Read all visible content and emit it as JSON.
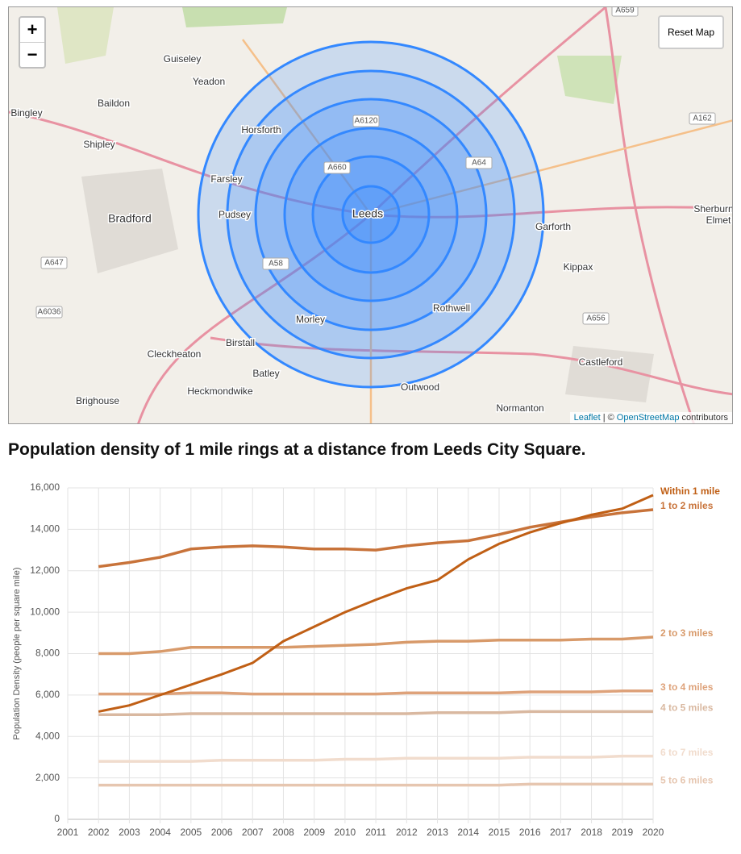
{
  "map": {
    "zoom_in": "+",
    "zoom_out": "−",
    "reset": "Reset Map",
    "attribution": {
      "leaflet": "Leaflet",
      "sep": "| ©",
      "osm": "OpenStreetMap",
      "rest": "contributors"
    },
    "places": [
      "Guiseley",
      "Yeadon",
      "Baildon",
      "Bingley",
      "Shipley",
      "Horsforth",
      "Farsley",
      "Pudsey",
      "Bradford",
      "Leeds",
      "Garforth",
      "Kippax",
      "Rothwell",
      "Morley",
      "Birstall",
      "Batley",
      "Cleckheaton",
      "Heckmondwike",
      "Brighouse",
      "Outwood",
      "Normanton",
      "Castleford",
      "Sherburn",
      "Elmet"
    ],
    "roads": [
      "A6120",
      "A660",
      "A64",
      "A58",
      "A647",
      "A6036",
      "A656",
      "A162",
      "A659"
    ]
  },
  "heading": "Population density of 1 mile rings at a distance from Leeds City Square.",
  "chart_data": {
    "type": "line",
    "y_label": "Population Density (people per square mile)",
    "x": [
      2002,
      2003,
      2004,
      2005,
      2006,
      2007,
      2008,
      2009,
      2010,
      2011,
      2012,
      2013,
      2014,
      2015,
      2016,
      2017,
      2018,
      2019,
      2020
    ],
    "xlim": [
      2001,
      2020
    ],
    "xticks": [
      2001,
      2002,
      2003,
      2004,
      2005,
      2006,
      2007,
      2008,
      2009,
      2010,
      2011,
      2012,
      2013,
      2014,
      2015,
      2016,
      2017,
      2018,
      2019,
      2020
    ],
    "ylim": [
      0,
      16000
    ],
    "yticks": [
      0,
      {
        "value": 2000,
        "label": "2,000"
      },
      {
        "value": 4000,
        "label": "4,000"
      },
      {
        "value": 6000,
        "label": "6,000"
      },
      {
        "value": 8000,
        "label": "8,000"
      },
      {
        "value": 10000,
        "label": "10,000"
      },
      {
        "value": 12000,
        "label": "12,000"
      },
      {
        "value": 14000,
        "label": "14,000"
      },
      {
        "value": 16000,
        "label": "16,000"
      }
    ],
    "grid": true,
    "series": [
      {
        "name": "Within 1 mile",
        "color": "#c05f15",
        "values": [
          5200,
          5500,
          6000,
          6500,
          7000,
          7550,
          8600,
          9300,
          10000,
          10600,
          11150,
          11550,
          12550,
          13300,
          13850,
          14300,
          14700,
          15000,
          15650
        ]
      },
      {
        "name": "1 to 2 miles",
        "color": "#c8733a",
        "values": [
          12200,
          12400,
          12650,
          13050,
          13150,
          13200,
          13150,
          13050,
          13050,
          13000,
          13200,
          13350,
          13450,
          13750,
          14100,
          14350,
          14600,
          14800,
          14950
        ]
      },
      {
        "name": "2 to 3 miles",
        "color": "#d89a6a",
        "values": [
          8000,
          8000,
          8100,
          8300,
          8300,
          8300,
          8300,
          8350,
          8400,
          8450,
          8550,
          8600,
          8600,
          8650,
          8650,
          8650,
          8700,
          8700,
          8800
        ]
      },
      {
        "name": "3 to 4 miles",
        "color": "#dea27a",
        "values": [
          6050,
          6050,
          6050,
          6100,
          6100,
          6050,
          6050,
          6050,
          6050,
          6050,
          6100,
          6100,
          6100,
          6100,
          6150,
          6150,
          6150,
          6200,
          6200
        ]
      },
      {
        "name": "4 to 5 miles",
        "color": "#d9b8a0",
        "values": [
          5050,
          5050,
          5050,
          5100,
          5100,
          5100,
          5100,
          5100,
          5100,
          5100,
          5100,
          5150,
          5150,
          5150,
          5200,
          5200,
          5200,
          5200,
          5200
        ]
      },
      {
        "name": "6 to 7 miles",
        "color": "#f1dccd",
        "values": [
          2800,
          2800,
          2800,
          2800,
          2850,
          2850,
          2850,
          2850,
          2900,
          2900,
          2950,
          2950,
          2950,
          2950,
          3000,
          3000,
          3000,
          3050,
          3050
        ]
      },
      {
        "name": "5 to 6 miles",
        "color": "#e6c6b0",
        "values": [
          1650,
          1650,
          1650,
          1650,
          1650,
          1650,
          1650,
          1650,
          1650,
          1650,
          1650,
          1650,
          1650,
          1650,
          1700,
          1700,
          1700,
          1700,
          1700
        ]
      }
    ]
  }
}
